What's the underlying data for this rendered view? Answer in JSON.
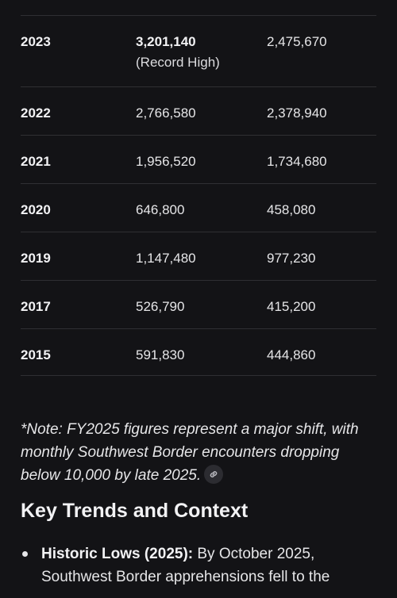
{
  "table": {
    "rows": [
      {
        "year": "2023",
        "value1": "3,201,140",
        "value1_note": "(Record High)",
        "value2": "2,475,670"
      },
      {
        "year": "2022",
        "value1": "2,766,580",
        "value2": "2,378,940"
      },
      {
        "year": "2021",
        "value1": "1,956,520",
        "value2": "1,734,680"
      },
      {
        "year": "2020",
        "value1": "646,800",
        "value2": "458,080"
      },
      {
        "year": "2019",
        "value1": "1,147,480",
        "value2": "977,230"
      },
      {
        "year": "2017",
        "value1": "526,790",
        "value2": "415,200"
      },
      {
        "year": "2015",
        "value1": "591,830",
        "value2": "444,860"
      }
    ]
  },
  "note": {
    "text": "*Note: FY2025 figures represent a major shift, with monthly Southwest Border encounters dropping below 10,000 by late 2025.",
    "icon": "link-icon"
  },
  "section": {
    "heading": "Key Trends and Context",
    "bullets": [
      {
        "bold": "Historic Lows (2025):",
        "text": " By October 2025, Southwest Border apprehensions fell to the"
      }
    ]
  }
}
